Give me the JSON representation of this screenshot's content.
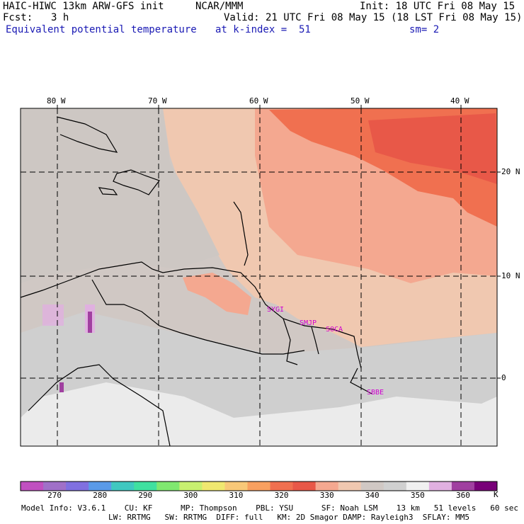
{
  "header": {
    "model_title": "HAIC-HIWC 13km ARW-GFS init",
    "center": "NCAR/MMM",
    "init": "Init: 18 UTC Fri 08 May 15",
    "fcst_label": "Fcst:",
    "fcst_value": "3 h",
    "valid": "Valid: 21 UTC Fri 08 May 15 (18 LST Fri 08 May 15)",
    "field": "Equivalent potential temperature",
    "level": "at k-index =  51",
    "smoothing": "sm= 2"
  },
  "map": {
    "lon_labels": [
      "80 W",
      "70 W",
      "60 W",
      "50 W",
      "40 W"
    ],
    "lat_labels": [
      "20 N",
      "10 N",
      "0"
    ],
    "stations": [
      "SYGI",
      "SMJP",
      "SOCA",
      "SBBE"
    ]
  },
  "colorbar": {
    "colors": [
      "#c050c0",
      "#a070c8",
      "#8070e0",
      "#5a9ae8",
      "#40c8c0",
      "#40e0a0",
      "#80e870",
      "#c8f070",
      "#f0e870",
      "#f8c878",
      "#f8a060",
      "#f07050",
      "#e85848",
      "#f4a890",
      "#f0c8b0",
      "#d0c8c4",
      "#d0d0d0",
      "#f0f0f0",
      "#e0b0e0",
      "#a040a0",
      "#780078"
    ],
    "labels": [
      "270",
      "280",
      "290",
      "300",
      "310",
      "320",
      "330",
      "340",
      "350",
      "360"
    ],
    "unit": "K"
  },
  "footer": {
    "line1": "Model Info: V3.6.1    CU: KF      MP: Thompson    PBL: YSU      SF: Noah LSM    13 km   51 levels   60 sec",
    "line2": "LW: RRTMG   SW: RRTMG  DIFF: full   KM: 2D Smagor DAMP: Rayleigh3  SFLAY: MM5"
  }
}
